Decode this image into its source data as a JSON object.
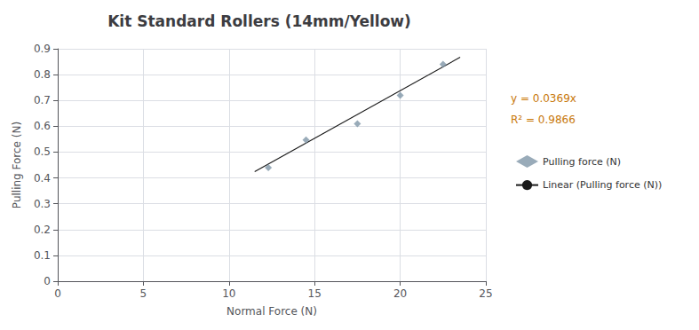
{
  "chart_data": {
    "type": "scatter",
    "title": "Kit Standard Rollers (14mm/Yellow)",
    "xlabel": "Normal Force (N)",
    "ylabel": "Pulling Force (N)",
    "xlim": [
      0,
      25
    ],
    "ylim": [
      0,
      0.9
    ],
    "xticks": [
      0,
      5,
      10,
      15,
      20,
      25
    ],
    "yticks": [
      0,
      0.1,
      0.2,
      0.3,
      0.4,
      0.5,
      0.6,
      0.7,
      0.8,
      0.9
    ],
    "grid": true,
    "legend": "right",
    "series": [
      {
        "name": "Pulling force (N)",
        "type": "scatter",
        "marker": "diamond",
        "color": "#7f96a8",
        "x": [
          12.3,
          14.5,
          17.5,
          20.0,
          22.5
        ],
        "values": [
          0.44,
          0.547,
          0.61,
          0.72,
          0.84
        ]
      },
      {
        "name": "Linear (Pulling force (N))",
        "type": "line",
        "line_style": "solid",
        "color": "#1a1a1a",
        "x": [
          11.5,
          23.5
        ],
        "values": [
          0.42435,
          0.86715
        ]
      }
    ],
    "annotations": [
      {
        "text": "y = 0.0369x",
        "color": "#c8780a"
      },
      {
        "text": "R² = 0.9866",
        "color": "#c8780a"
      }
    ]
  }
}
